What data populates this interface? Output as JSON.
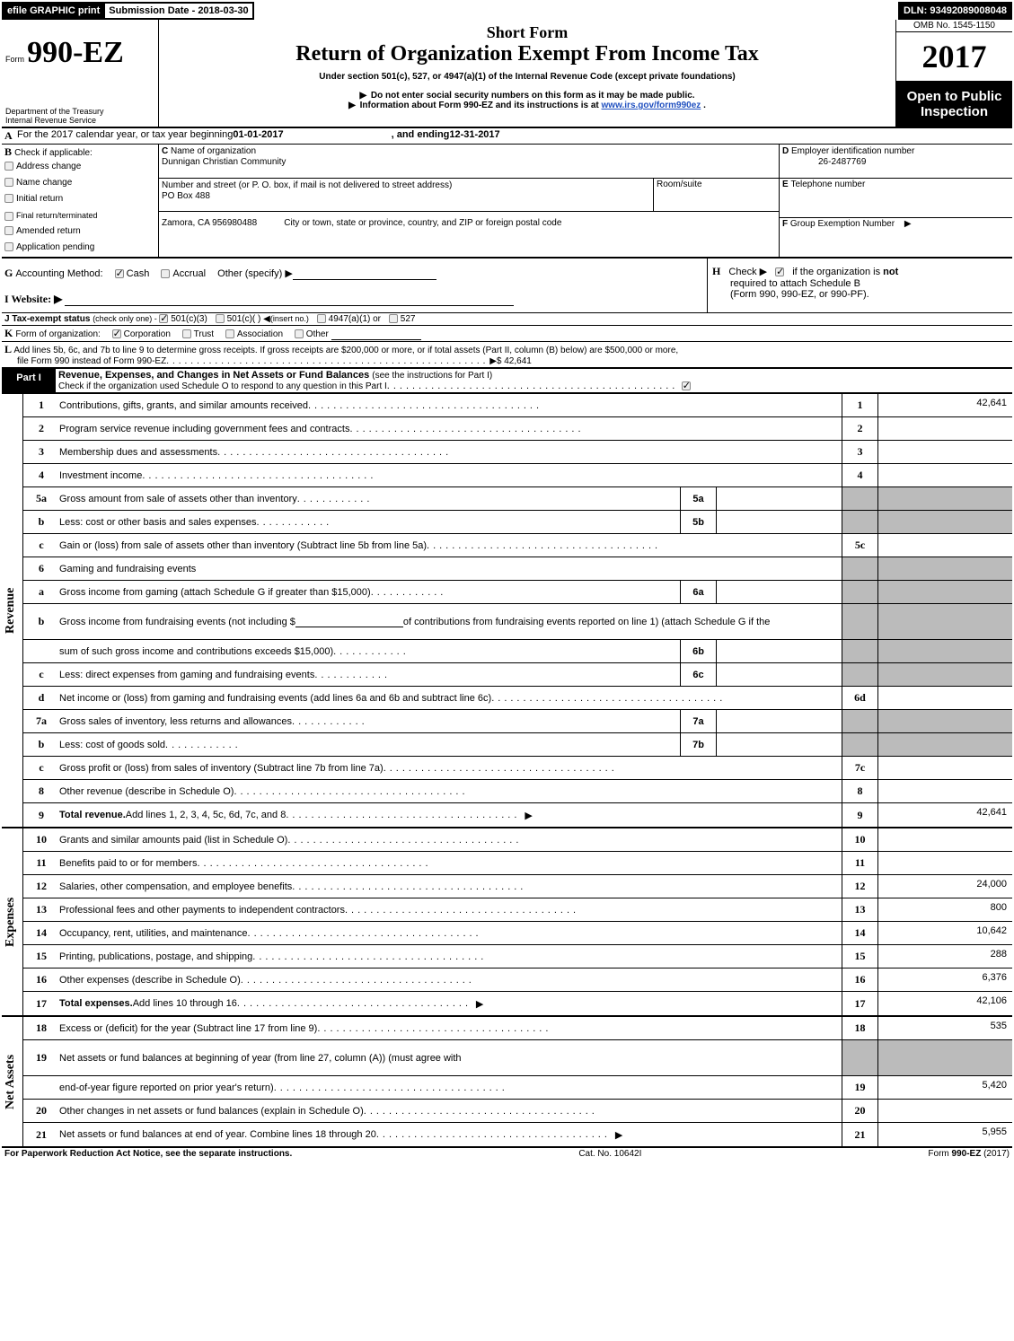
{
  "header": {
    "efile_label": "efile GRAPHIC print",
    "submission_label": "Submission Date - 2018-03-30",
    "dln_label": "DLN: 93492089008048",
    "omb_label": "OMB No. 1545-1150",
    "form_prefix": "Form",
    "form_number": "990-EZ",
    "title_short": "Short Form",
    "title_main": "Return of Organization Exempt From Income Tax",
    "title_sub": "Under section 501(c), 527, or 4947(a)(1) of the Internal Revenue Code (except private foundations)",
    "year": "2017",
    "dept1": "Department of the Treasury",
    "dept2": "Internal Revenue Service",
    "arrow1": "Do not enter social security numbers on this form as it may be made public.",
    "arrow2_pre": "Information about Form 990-EZ and its instructions is at ",
    "arrow2_link": "www.irs.gov/form990ez",
    "arrow2_post": ".",
    "open_public": "Open to Public Inspection"
  },
  "sectionA": {
    "A_label": "A",
    "A_text_pre": "For the 2017 calendar year, or tax year beginning ",
    "A_begin": "01-01-2017",
    "A_mid": ", and ending ",
    "A_end": "12-31-2017",
    "B_label": "B",
    "B_text": "Check if applicable:",
    "B_items": [
      "Address change",
      "Name change",
      "Initial return",
      "Final return/terminated",
      "Amended return",
      "Application pending"
    ],
    "C_label": "C ",
    "C_text": "Name of organization",
    "C_value": "Dunnigan Christian Community",
    "street_label": "Number and street (or P. O. box, if mail is not delivered to street address)",
    "street_value": "PO Box 488",
    "room_label": "Room/suite",
    "city_label": "City or town, state or province, country, and ZIP or foreign postal code",
    "city_value": "Zamora, CA  956980488",
    "D_label": "D ",
    "D_text": "Employer identification number",
    "D_value": "26-2487769",
    "E_label": "E ",
    "E_text": "Telephone number",
    "F_label": "F ",
    "F_text": "Group Exemption Number",
    "G_label": "G ",
    "G_text": "Accounting Method:",
    "G_cash": "Cash",
    "G_accrual": "Accrual",
    "G_other": "Other (specify)",
    "H_label": "H",
    "H_text": "Check ▶",
    "H_text2_pre": "if the organization is ",
    "H_text2_not": "not",
    "H_text3": "required to attach Schedule B",
    "H_text4": "(Form 990, 990-EZ, or 990-PF).",
    "I_label": "I Website: ▶",
    "J_label": "J Tax-exempt status",
    "J_text": "(check only one) - ",
    "J_501c3": "501(c)(3)",
    "J_501c": "501(c)(  )",
    "J_insert": "(insert no.)",
    "J_4947": "4947(a)(1) or",
    "J_527": "527",
    "K_label": "K ",
    "K_text": "Form of organization:",
    "K_corp": "Corporation",
    "K_trust": "Trust",
    "K_assoc": "Association",
    "K_other": "Other",
    "L_label": "L ",
    "L_text1": "Add lines 5b, 6c, and 7b to line 9 to determine gross receipts. If gross receipts are $200,000 or more, or if total assets (Part II, column (B) below) are $500,000 or more,",
    "L_text2": "file Form 990 instead of Form 990-EZ",
    "L_value": "$ 42,641"
  },
  "part1": {
    "header_label": "Part I",
    "header_text": "Revenue, Expenses, and Changes in Net Assets or Fund Balances ",
    "header_hint": "(see the instructions for Part I)",
    "check_text": "Check if the organization used Schedule O to respond to any question in this Part I"
  },
  "sections": {
    "revenue_label": "Revenue",
    "expenses_label": "Expenses",
    "netassets_label": "Net Assets"
  },
  "lines": [
    {
      "n": "1",
      "desc": "Contributions, gifts, grants, and similar amounts received",
      "box": "1",
      "val": "42,641"
    },
    {
      "n": "2",
      "desc": "Program service revenue including government fees and contracts",
      "box": "2",
      "val": ""
    },
    {
      "n": "3",
      "desc": "Membership dues and assessments",
      "box": "3",
      "val": ""
    },
    {
      "n": "4",
      "desc": "Investment income",
      "box": "4",
      "val": ""
    },
    {
      "n": "5a",
      "desc": "Gross amount from sale of assets other than inventory",
      "sub": "5a",
      "gray": true
    },
    {
      "n": "b",
      "desc": "Less: cost or other basis and sales expenses",
      "sub": "5b",
      "gray": true
    },
    {
      "n": "c",
      "desc": "Gain or (loss) from sale of assets other than inventory (Subtract line 5b from line 5a)",
      "box": "5c",
      "val": ""
    },
    {
      "n": "6",
      "desc": "Gaming and fundraising events",
      "gray": true,
      "nobox": true
    },
    {
      "n": "a",
      "desc": "Gross income from gaming (attach Schedule G if greater than $15,000)",
      "sub": "6a",
      "gray": true
    },
    {
      "n": "b",
      "desc_pre": "Gross income from fundraising events (not including $ ",
      "desc_blank": true,
      "desc_post": " of contributions from fundraising events reported on line 1) (attach Schedule G if the",
      "gray": true,
      "nobox": true,
      "multi": true
    },
    {
      "n": "",
      "desc": "sum of such gross income and contributions exceeds $15,000)",
      "sub": "6b",
      "gray": true
    },
    {
      "n": "c",
      "desc": "Less: direct expenses from gaming and fundraising events",
      "sub": "6c",
      "gray": true
    },
    {
      "n": "d",
      "desc": "Net income or (loss) from gaming and fundraising events (add lines 6a and 6b and subtract line 6c)",
      "box": "6d",
      "val": ""
    },
    {
      "n": "7a",
      "desc": "Gross sales of inventory, less returns and allowances",
      "sub": "7a",
      "gray": true
    },
    {
      "n": "b",
      "desc": "Less: cost of goods sold",
      "sub": "7b",
      "gray": true
    },
    {
      "n": "c",
      "desc": "Gross profit or (loss) from sales of inventory (Subtract line 7b from line 7a)",
      "box": "7c",
      "val": ""
    },
    {
      "n": "8",
      "desc": "Other revenue (describe in Schedule O)",
      "box": "8",
      "val": ""
    },
    {
      "n": "9",
      "desc_bold": "Total revenue. ",
      "desc": "Add lines 1, 2, 3, 4, 5c, 6d, 7c, and 8",
      "box": "9",
      "val": "42,641",
      "arrow": true,
      "heavy": true
    }
  ],
  "exp_lines": [
    {
      "n": "10",
      "desc": "Grants and similar amounts paid (list in Schedule O)",
      "box": "10",
      "val": ""
    },
    {
      "n": "11",
      "desc": "Benefits paid to or for members",
      "box": "11",
      "val": ""
    },
    {
      "n": "12",
      "desc": "Salaries, other compensation, and employee benefits",
      "box": "12",
      "val": "24,000"
    },
    {
      "n": "13",
      "desc": "Professional fees and other payments to independent contractors",
      "box": "13",
      "val": "800"
    },
    {
      "n": "14",
      "desc": "Occupancy, rent, utilities, and maintenance",
      "box": "14",
      "val": "10,642"
    },
    {
      "n": "15",
      "desc": "Printing, publications, postage, and shipping",
      "box": "15",
      "val": "288"
    },
    {
      "n": "16",
      "desc": "Other expenses (describe in Schedule O)",
      "box": "16",
      "val": "6,376"
    },
    {
      "n": "17",
      "desc_bold": "Total expenses. ",
      "desc": "Add lines 10 through 16",
      "box": "17",
      "val": "42,106",
      "arrow": true,
      "heavy": true
    }
  ],
  "net_lines": [
    {
      "n": "18",
      "desc": "Excess or (deficit) for the year (Subtract line 17 from line 9)",
      "box": "18",
      "val": "535"
    },
    {
      "n": "19",
      "desc": "Net assets or fund balances at beginning of year (from line 27, column (A)) (must agree with",
      "gray": true,
      "nobox": true,
      "multi": true
    },
    {
      "n": "",
      "desc": "end-of-year figure reported on prior year's return)",
      "box": "19",
      "val": "5,420"
    },
    {
      "n": "20",
      "desc": "Other changes in net assets or fund balances (explain in Schedule O)",
      "box": "20",
      "val": ""
    },
    {
      "n": "21",
      "desc": "Net assets or fund balances at end of year. Combine lines 18 through 20",
      "box": "21",
      "val": "5,955",
      "arrow": true,
      "heavy": true
    }
  ],
  "footer": {
    "paperwork": "For Paperwork Reduction Act Notice, see the separate instructions.",
    "catno": "Cat. No. 10642I",
    "form_pre": "Form ",
    "form": "990-EZ",
    "form_post": " (2017)"
  }
}
